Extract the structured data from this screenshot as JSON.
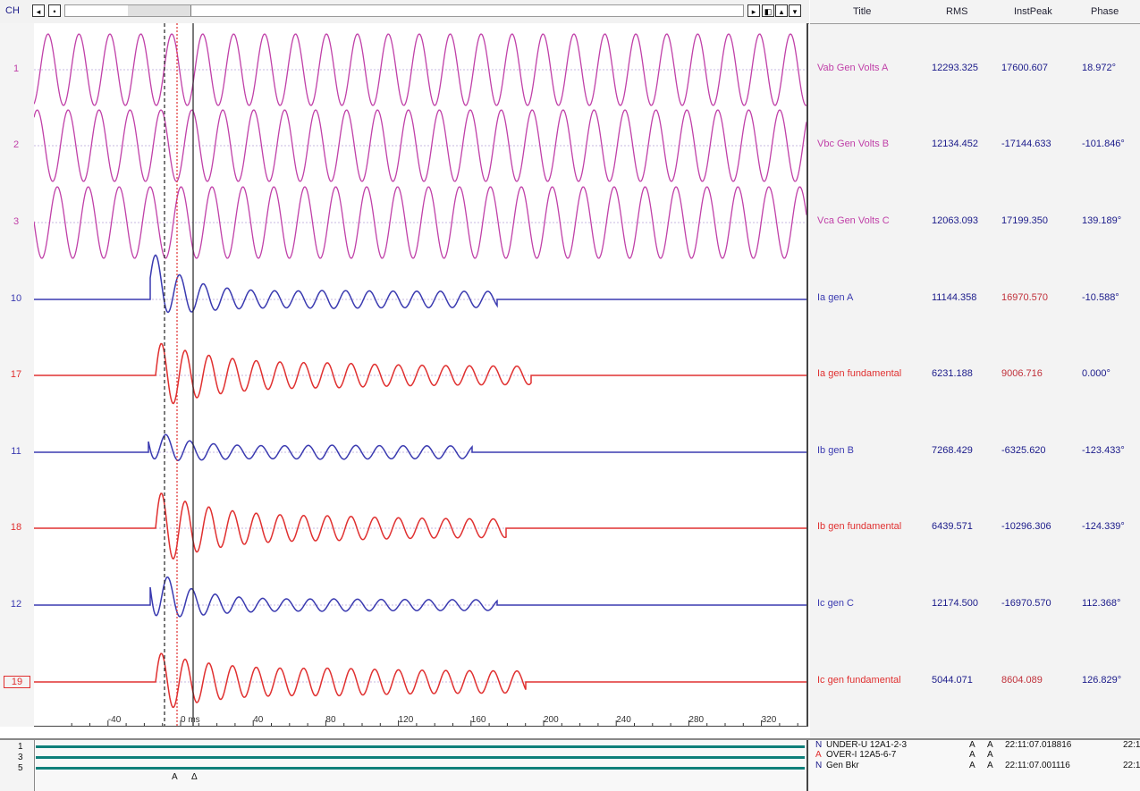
{
  "toolbar": {
    "ch_label": "CH"
  },
  "table_header": {
    "title": "Title",
    "rms": "RMS",
    "inst_peak": "InstPeak",
    "phase": "Phase"
  },
  "channels": [
    {
      "num": "1",
      "title": "Vab Gen Volts A",
      "rms": "12293.325",
      "peak": "17600.607",
      "phase": "18.972°",
      "color": "#c040a8",
      "peak_color": "#1a1a8a"
    },
    {
      "num": "2",
      "title": "Vbc Gen Volts B",
      "rms": "12134.452",
      "peak": "-17144.633",
      "phase": "-101.846°",
      "color": "#c040a8",
      "peak_color": "#1a1a8a"
    },
    {
      "num": "3",
      "title": "Vca Gen Volts C",
      "rms": "12063.093",
      "peak": "17199.350",
      "phase": "139.189°",
      "color": "#c040a8",
      "peak_color": "#1a1a8a"
    },
    {
      "num": "10",
      "title": "Ia gen A",
      "rms": "11144.358",
      "peak": "16970.570",
      "phase": "-10.588°",
      "color": "#3a3ab0",
      "peak_color": "#c0303a"
    },
    {
      "num": "17",
      "title": "Ia gen fundamental",
      "rms": "6231.188",
      "peak": "9006.716",
      "phase": "0.000°",
      "color": "#e03030",
      "peak_color": "#c0303a"
    },
    {
      "num": "11",
      "title": "Ib gen B",
      "rms": "7268.429",
      "peak": "-6325.620",
      "phase": "-123.433°",
      "color": "#3a3ab0",
      "peak_color": "#1a1a8a"
    },
    {
      "num": "18",
      "title": "Ib gen fundamental",
      "rms": "6439.571",
      "peak": "-10296.306",
      "phase": "-124.339°",
      "color": "#e03030",
      "peak_color": "#1a1a8a"
    },
    {
      "num": "12",
      "title": "Ic gen C",
      "rms": "12174.500",
      "peak": "-16970.570",
      "phase": "112.368°",
      "color": "#3a3ab0",
      "peak_color": "#1a1a8a"
    },
    {
      "num": "19",
      "title": "Ic gen fundamental",
      "rms": "5044.071",
      "peak": "8604.089",
      "phase": "126.829°",
      "color": "#e03030",
      "peak_color": "#c0303a"
    }
  ],
  "time_axis": {
    "unit": "ms",
    "ticks": [
      "-40",
      "0",
      "40",
      "80",
      "120",
      "160",
      "200",
      "240",
      "280",
      "320"
    ]
  },
  "digital": {
    "channel_numbers": [
      "1",
      "3",
      "5"
    ],
    "events": [
      {
        "flag": "N",
        "name": "UNDER-U 12A1-2-3",
        "s1": "A",
        "s2": "A",
        "time": "22:11:07.018816",
        "extra": "22:1"
      },
      {
        "flag": "A",
        "name": "OVER-I 12A5-6-7",
        "s1": "A",
        "s2": "A",
        "time": "",
        "extra": ""
      },
      {
        "flag": "N",
        "name": "Gen Bkr",
        "s1": "A",
        "s2": "A",
        "time": "22:11:07.001116",
        "extra": "22:1"
      }
    ],
    "cursor_marks": [
      "A",
      "Δ"
    ]
  },
  "colors": {
    "voltage": "#c040a8",
    "current": "#3a3ab0",
    "fundamental": "#e03030",
    "digital": "#0e7f7a",
    "cursor_red": "#e03030"
  }
}
